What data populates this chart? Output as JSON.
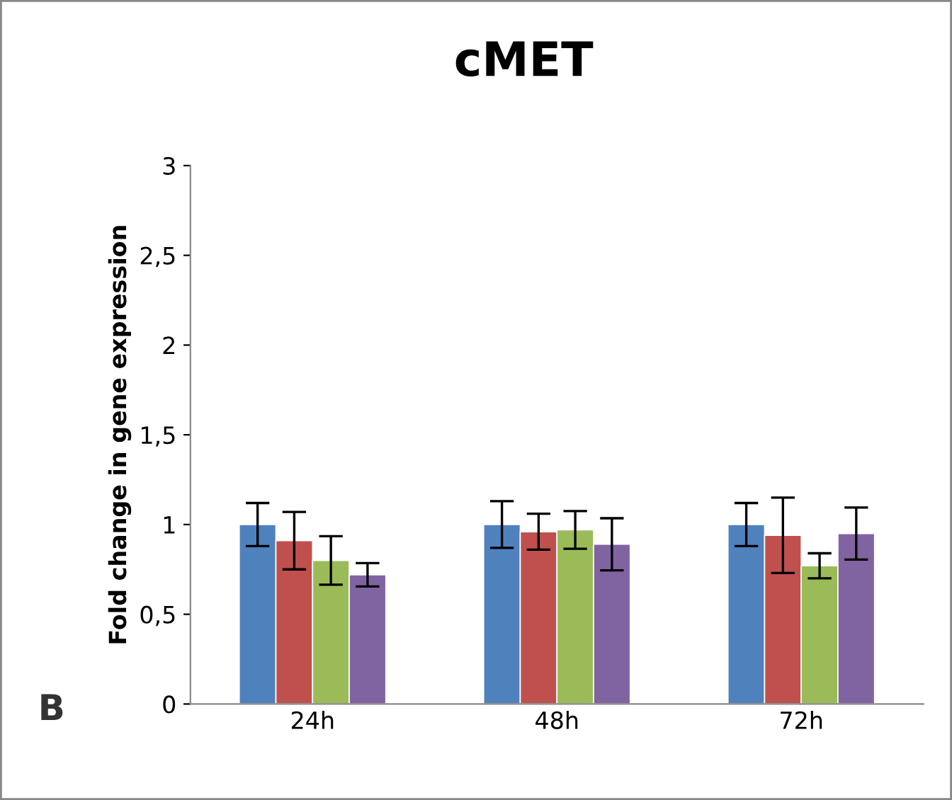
{
  "chart_data": {
    "type": "bar",
    "title": "cMET",
    "ylabel": "Fold change in gene expression",
    "categories": [
      "24h",
      "48h",
      "72h"
    ],
    "series": [
      {
        "color": "#4f81bd",
        "values": [
          1.0,
          1.0,
          1.0
        ],
        "errors": [
          0.12,
          0.13,
          0.12
        ]
      },
      {
        "color": "#c0504d",
        "values": [
          0.91,
          0.96,
          0.94
        ],
        "errors": [
          0.16,
          0.1,
          0.21
        ]
      },
      {
        "color": "#9bbb59",
        "values": [
          0.8,
          0.97,
          0.77
        ],
        "errors": [
          0.135,
          0.105,
          0.07
        ]
      },
      {
        "color": "#8064a2",
        "values": [
          0.72,
          0.89,
          0.95
        ],
        "errors": [
          0.065,
          0.145,
          0.145
        ]
      }
    ],
    "ylim": [
      0,
      3
    ],
    "yticks": [
      0,
      {
        "value": 0.5,
        "label": "0,5"
      },
      1,
      {
        "value": 1.5,
        "label": "1,5"
      },
      2,
      {
        "value": 2.5,
        "label": "2,5"
      },
      3
    ],
    "annotations": [
      "B"
    ],
    "grid": false,
    "legend": false
  }
}
